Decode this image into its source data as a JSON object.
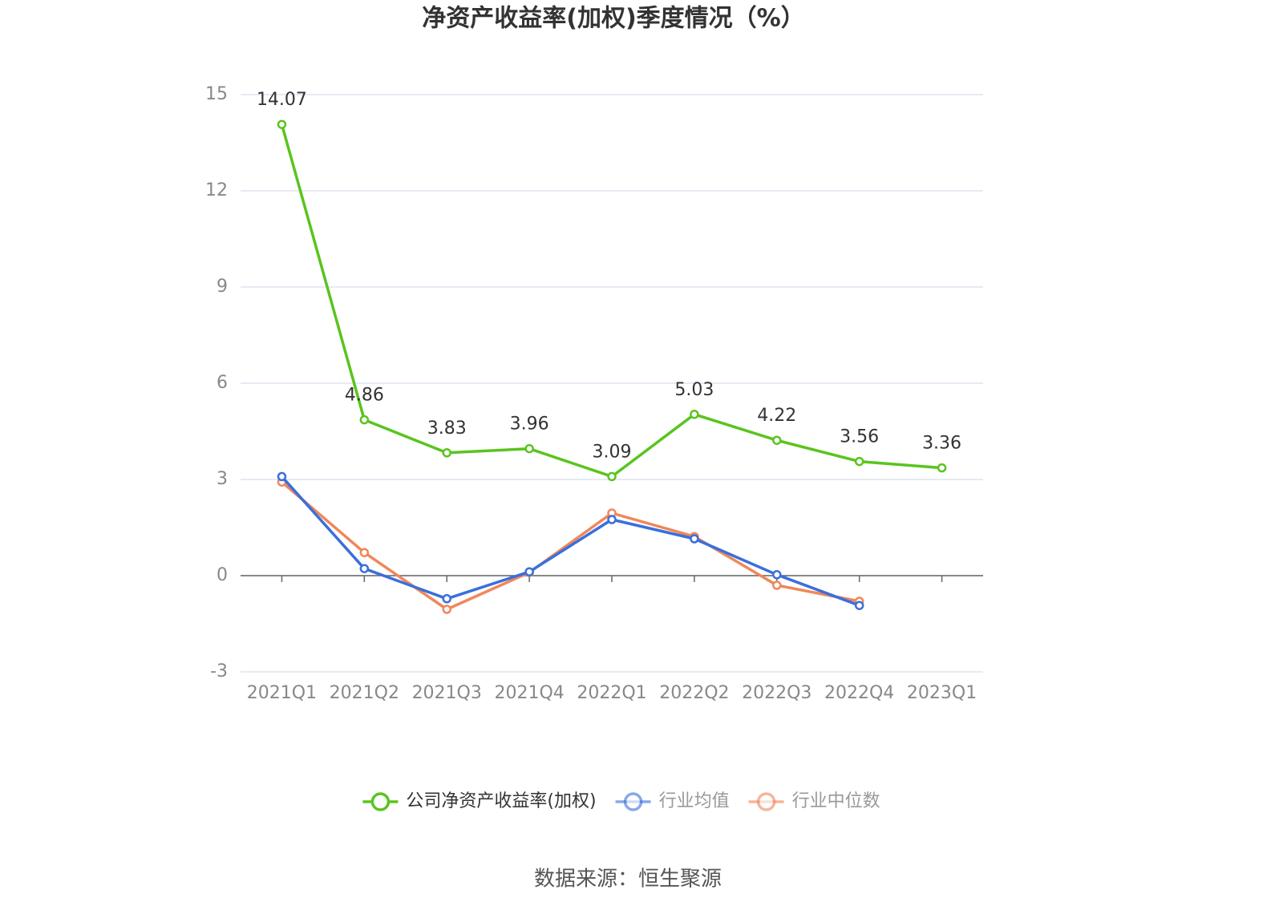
{
  "chart_data": {
    "type": "line",
    "title": "净资产收益率(加权)季度情况（%）",
    "categories": [
      "2021Q1",
      "2021Q2",
      "2021Q3",
      "2021Q4",
      "2022Q1",
      "2022Q2",
      "2022Q3",
      "2022Q4",
      "2023Q1"
    ],
    "series": [
      {
        "name": "公司净资产收益率(加权)",
        "color": "#5ac41e",
        "values": [
          14.07,
          4.86,
          3.83,
          3.96,
          3.09,
          5.03,
          4.22,
          3.56,
          3.36
        ]
      },
      {
        "name": "行业均值",
        "color": "#3a6fdc",
        "values": [
          3.09,
          0.22,
          -0.72,
          0.12,
          1.75,
          1.15,
          0.03,
          -0.93,
          null
        ]
      },
      {
        "name": "行业中位数",
        "color": "#f0875a",
        "values": [
          2.92,
          0.72,
          -1.05,
          0.1,
          1.95,
          1.22,
          -0.3,
          -0.8,
          null
        ]
      }
    ],
    "ylim": [
      -3,
      15
    ],
    "yticks": [
      -3,
      0,
      3,
      6,
      9,
      12,
      15
    ],
    "grid": true,
    "legend": "bottom",
    "source": "数据来源：恒生聚源"
  }
}
